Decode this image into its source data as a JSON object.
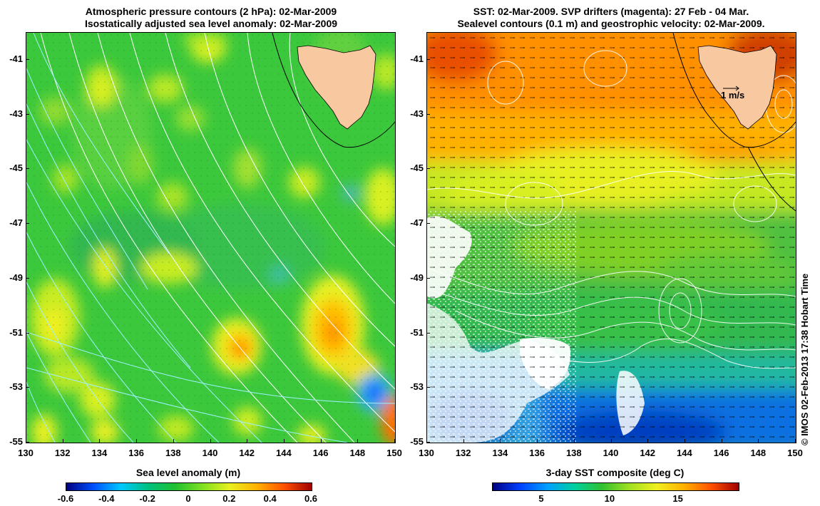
{
  "left_panel": {
    "title_line1": "Atmospheric pressure contours (2 hPa): 02-Mar-2009",
    "title_line2": "Isostatically adjusted sea level anomaly: 02-Mar-2009",
    "colorbar_label": "Sea level anomaly (m)",
    "colorbar_ticks": [
      "-0.6",
      "-0.4",
      "-0.2",
      "0",
      "0.2",
      "0.4",
      "0.6"
    ],
    "colormap": [
      "#00007f",
      "#0050ff",
      "#00c8ff",
      "#00c080",
      "#20c030",
      "#80e020",
      "#e8f020",
      "#ffb000",
      "#ff5000",
      "#a00000"
    ]
  },
  "right_panel": {
    "title_line1": "SST: 02-Mar-2009. SVP drifters (magenta): 27 Feb - 04 Mar.",
    "title_line2": "Sealevel contours (0.1 m) and geostrophic velocity: 02-Mar-2009.",
    "colorbar_label": "3-day SST composite (deg C)",
    "colorbar_ticks": [
      "5",
      "10",
      "15"
    ],
    "vector_scale_label": "1 m/s",
    "colormap": [
      "#00007f",
      "#0040ff",
      "#00a0ff",
      "#00d0a0",
      "#30c030",
      "#a0e020",
      "#f0f020",
      "#ffb000",
      "#ff5000",
      "#a00000"
    ]
  },
  "axes": {
    "x_ticks": [
      "130",
      "132",
      "134",
      "136",
      "138",
      "140",
      "142",
      "144",
      "146",
      "148",
      "150"
    ],
    "y_ticks": [
      "-41",
      "-43",
      "-45",
      "-47",
      "-49",
      "-51",
      "-53",
      "-55"
    ]
  },
  "copyright": "© IMOS 02-Feb-2013 17:38 Hobart Time",
  "colors": {
    "land": "#f8c8a0",
    "contour_left": "#ffffff",
    "contour_cyan": "#a0f0ff",
    "vector": "#000000"
  }
}
